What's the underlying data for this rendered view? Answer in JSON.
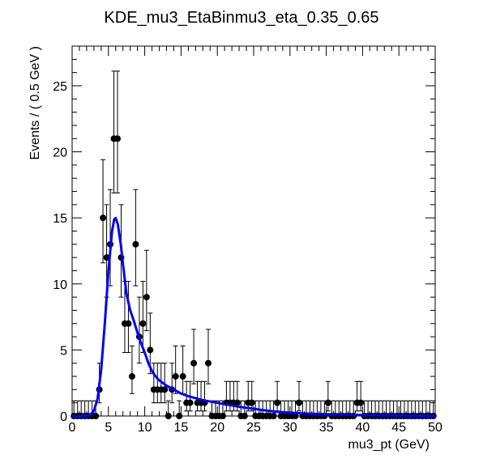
{
  "chart_data": {
    "type": "scatter",
    "title": "KDE_mu3_EtaBinmu3_eta_0.35_0.65",
    "xlabel": "mu3_pt (GeV)",
    "ylabel": "Events / ( 0.5 GeV )",
    "xlim": [
      0,
      50
    ],
    "ylim": [
      0,
      28
    ],
    "x_ticks": [
      0,
      5,
      10,
      15,
      20,
      25,
      30,
      35,
      40,
      45,
      50
    ],
    "y_ticks": [
      0,
      5,
      10,
      15,
      20,
      25
    ],
    "grid": false,
    "legend": "none",
    "colors": {
      "points": "#000000",
      "curve": "#0000ff",
      "frame": "#000000"
    },
    "bin_width": 0.5,
    "series": [
      {
        "type": "points_with_errors",
        "x": [
          0.25,
          0.75,
          1.25,
          1.75,
          2.25,
          2.75,
          3.25,
          3.75,
          4.25,
          4.75,
          5.25,
          5.75,
          6.25,
          6.75,
          7.25,
          7.75,
          8.25,
          8.75,
          9.25,
          9.75,
          10.25,
          10.75,
          11.25,
          11.75,
          12.25,
          12.75,
          13.25,
          13.75,
          14.25,
          14.75,
          15.25,
          15.75,
          16.25,
          16.75,
          17.25,
          17.75,
          18.25,
          18.75,
          19.25,
          19.75,
          20.25,
          20.75,
          21.25,
          21.75,
          22.25,
          22.75,
          23.25,
          23.75,
          24.25,
          24.75,
          25.25,
          25.75,
          26.25,
          26.75,
          27.25,
          27.75,
          28.25,
          28.75,
          29.25,
          29.75,
          30.25,
          30.75,
          31.25,
          31.75,
          32.25,
          32.75,
          33.25,
          33.75,
          34.25,
          34.75,
          35.25,
          35.75,
          36.25,
          36.75,
          37.25,
          37.75,
          38.25,
          38.75,
          39.25,
          39.75,
          40.25,
          40.75,
          41.25,
          41.75,
          42.25,
          42.75,
          43.25,
          43.75,
          44.25,
          44.75,
          45.25,
          45.75,
          46.25,
          46.75,
          47.25,
          47.75,
          48.25,
          48.75,
          49.25,
          49.75
        ],
        "y": [
          0,
          0,
          0,
          0,
          0,
          0,
          0,
          2,
          15,
          12,
          13,
          21,
          21,
          12,
          7,
          7,
          3,
          13,
          6,
          7,
          9,
          5,
          2,
          2,
          2,
          2,
          0,
          2,
          3,
          0,
          3,
          1,
          1,
          4,
          1,
          1,
          1,
          4,
          0,
          0,
          0,
          0,
          1,
          1,
          1,
          1,
          0,
          0,
          1,
          1,
          0,
          0,
          0,
          0,
          0,
          0,
          1,
          0,
          0,
          0,
          0,
          0,
          1,
          0,
          0,
          0,
          0,
          0,
          0,
          0,
          1,
          0,
          0,
          0,
          0,
          0,
          0,
          0,
          1,
          1,
          0,
          0,
          0,
          0,
          0,
          0,
          0,
          0,
          0,
          0,
          0,
          0,
          0,
          0,
          0,
          0,
          0,
          0,
          0,
          0
        ]
      },
      {
        "type": "curve",
        "x": [
          0,
          1,
          2,
          2.5,
          3,
          3.5,
          4,
          4.5,
          5,
          5.5,
          5.8,
          6,
          6.3,
          6.7,
          7,
          7.5,
          8,
          8.5,
          9,
          9.5,
          10,
          10.5,
          11,
          11.5,
          12,
          13,
          14,
          15,
          16,
          17,
          18,
          19,
          20,
          21,
          22,
          23,
          24,
          25,
          26,
          27,
          28,
          29,
          30,
          32,
          34,
          36,
          38,
          40,
          42,
          44,
          46,
          48,
          50
        ],
        "y": [
          0,
          0,
          0.03,
          0.1,
          0.4,
          1.3,
          3.5,
          7,
          11,
          14,
          14.9,
          15,
          14.5,
          13,
          11.5,
          9.2,
          8,
          7.2,
          6.3,
          5.5,
          4.8,
          4,
          3.4,
          3,
          2.7,
          2.3,
          2,
          1.7,
          1.5,
          1.35,
          1.2,
          1.1,
          1,
          0.9,
          0.8,
          0.7,
          0.62,
          0.55,
          0.47,
          0.4,
          0.34,
          0.29,
          0.25,
          0.19,
          0.15,
          0.12,
          0.1,
          0.08,
          0.06,
          0.05,
          0.04,
          0.03,
          0.02
        ]
      }
    ]
  }
}
